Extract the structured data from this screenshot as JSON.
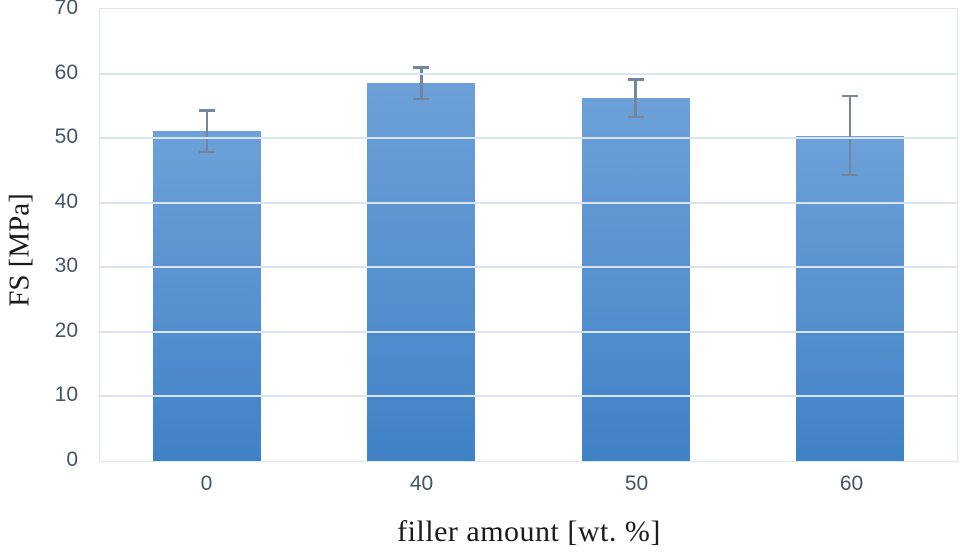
{
  "chart_data": {
    "type": "bar",
    "title": "",
    "categories": [
      "0",
      "40",
      "50",
      "60"
    ],
    "values": [
      51.1,
      58.5,
      56.2,
      50.4
    ],
    "errors": [
      3.4,
      2.6,
      3.1,
      6.3
    ],
    "xlabel": "filler amount [wt. %]",
    "ylabel": "FS [MPa]",
    "ylim": [
      0,
      70
    ],
    "yticks": [
      0,
      10,
      20,
      30,
      40,
      50,
      60,
      70
    ],
    "grid": true,
    "legend_position": "none",
    "colors": {
      "bar_top": "#6da0d8",
      "bar_bottom": "#3f82c6",
      "gridline": "#dae3f3",
      "plot_border": "#dde6f3",
      "tick_label": "#44546a",
      "axis_title": "#1b1b1b",
      "error_bar": "#74859e",
      "background": "#ffffff"
    }
  }
}
